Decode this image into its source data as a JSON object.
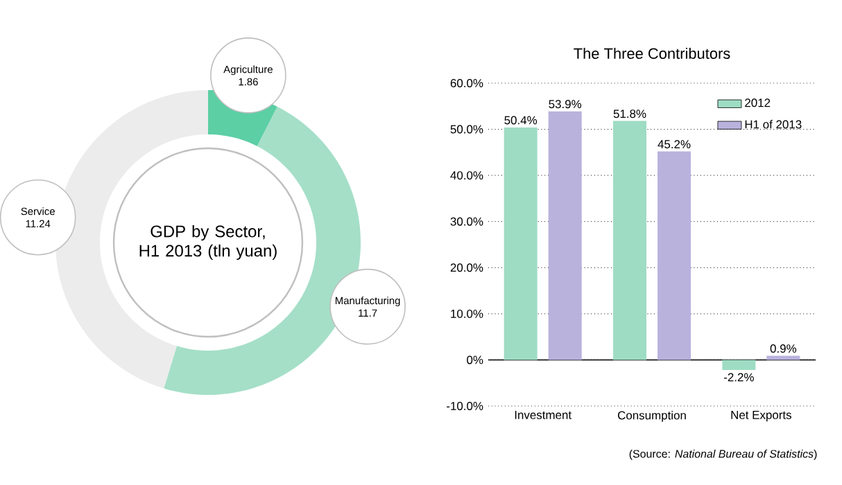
{
  "chart_data": [
    {
      "type": "donut",
      "title": "GDP by Sector, H1 2013 (tln yuan)",
      "categories": [
        "Agriculture",
        "Manufacturing",
        "Service"
      ],
      "values": [
        1.86,
        11.7,
        11.24
      ],
      "colors": [
        "#5ccfa5",
        "#a5dfc8",
        "#ececec"
      ],
      "data_labels": true
    },
    {
      "type": "bar",
      "title": "The Three Contributors",
      "categories": [
        "Investment",
        "Consumption",
        "Net Exports"
      ],
      "series": [
        {
          "name": "2012",
          "color": "#9fdcc4",
          "values": [
            50.4,
            51.8,
            -2.2
          ],
          "value_labels": [
            "50.4%",
            "51.8%",
            "-2.2%"
          ]
        },
        {
          "name": "H1 of 2013",
          "color": "#b9b2dd",
          "values": [
            53.9,
            45.2,
            0.9
          ],
          "value_labels": [
            "53.9%",
            "45.2%",
            "0.9%"
          ]
        }
      ],
      "ylim": [
        -10,
        60
      ],
      "yticks": [
        {
          "value": -10,
          "label": "-10.0%"
        },
        {
          "value": 0,
          "label": "0%"
        },
        {
          "value": 10,
          "label": "10.0%"
        },
        {
          "value": 20,
          "label": "20.0%"
        },
        {
          "value": 30,
          "label": "30.0%"
        },
        {
          "value": 40,
          "label": "40.0%"
        },
        {
          "value": 50,
          "label": "50.0%"
        },
        {
          "value": 60,
          "label": "60.0%"
        }
      ],
      "grid": "y",
      "legend": "top right",
      "annotations": [
        "(Source: *National Bureau of Statistics*)"
      ]
    }
  ]
}
